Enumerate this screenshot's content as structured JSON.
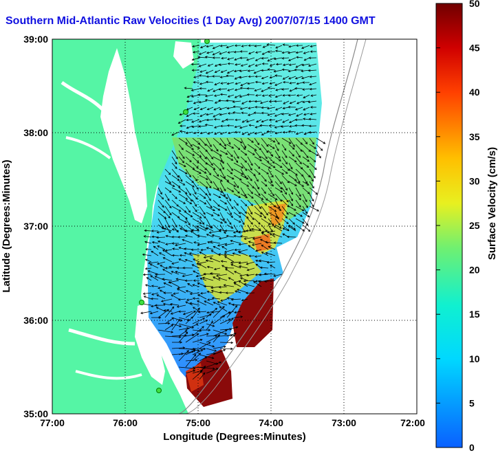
{
  "title": "Southern Mid-Atlantic Raw Velocities (1 Day Avg) 2007/07/15 1400 GMT",
  "axes": {
    "xlabel": "Longitude (Degrees:Minutes)",
    "ylabel": "Latitude (Degrees:Minutes)",
    "x_ticks": [
      "77:00",
      "76:00",
      "75:00",
      "74:00",
      "73:00",
      "72:00"
    ],
    "y_ticks": [
      "39:00",
      "38:00",
      "37:00",
      "36:00",
      "35:00"
    ]
  },
  "colorbar": {
    "label": "Surface Velocity (cm/s)",
    "ticks": [
      "50",
      "45",
      "40",
      "35",
      "30",
      "25",
      "20",
      "15",
      "10",
      "5",
      "0"
    ],
    "min": 0,
    "max": 50
  },
  "colors": {
    "title": "#1010e0",
    "land": "#55f5a5",
    "water": "#ffffff",
    "vector": "#000000"
  },
  "features": {
    "radar_sites": 4,
    "grid": "dotted"
  }
}
